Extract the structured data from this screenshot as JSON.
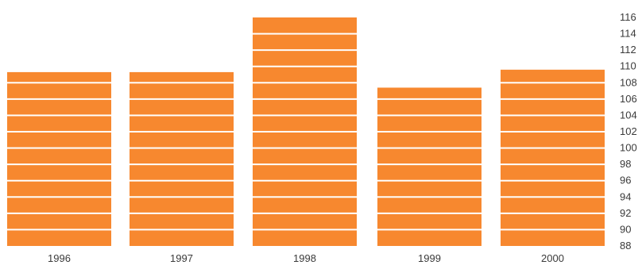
{
  "chart_data": {
    "type": "bar",
    "categories": [
      "1996",
      "1997",
      "1998",
      "1999",
      "2000"
    ],
    "values": [
      109.3,
      109.3,
      116.0,
      107.4,
      109.6
    ],
    "ylim": [
      88,
      116
    ],
    "yticks": [
      "88",
      "90",
      "92",
      "94",
      "96",
      "98",
      "100",
      "102",
      "104",
      "106",
      "108",
      "110",
      "112",
      "114",
      "116"
    ],
    "y_axis_position": "right",
    "bar_color": "#f7882f",
    "stripe_color": "#ffffff",
    "grid": false,
    "legend": "none"
  }
}
